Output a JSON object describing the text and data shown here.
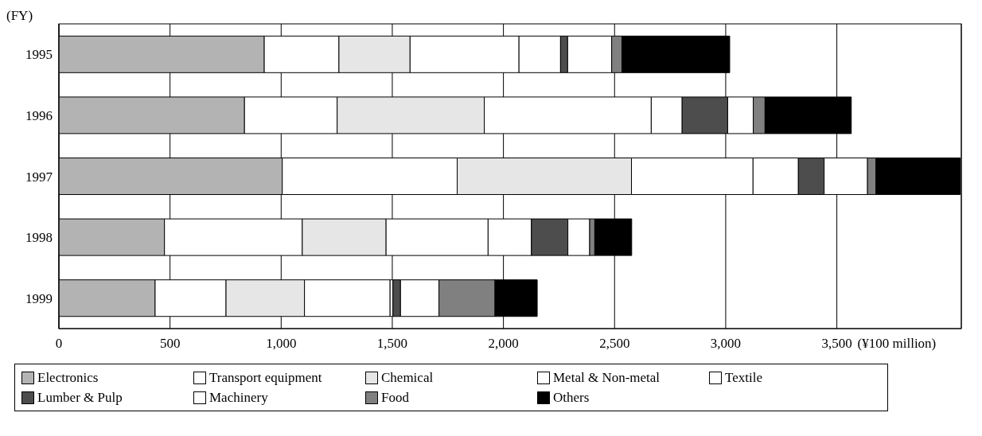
{
  "chart_data": {
    "type": "bar",
    "orientation": "horizontal",
    "stacked": true,
    "ylabel": "(FY)",
    "xlabel": "(¥100 million)",
    "categories": [
      "1995",
      "1996",
      "1997",
      "1998",
      "1999"
    ],
    "series": [
      {
        "name": "Electronics",
        "color": "#b3b3b3",
        "values": [
          924,
          835,
          1005,
          475,
          433
        ]
      },
      {
        "name": "Transport equipment",
        "color": "#ffffff",
        "values": [
          336,
          417,
          787,
          620,
          319
        ]
      },
      {
        "name": "Chemical",
        "color": "#e6e6e6",
        "values": [
          320,
          662,
          784,
          377,
          353
        ]
      },
      {
        "name": "Metal & Non-metal",
        "color": "#ffffff",
        "values": [
          490,
          751,
          547,
          459,
          385
        ]
      },
      {
        "name": "Textile",
        "color": "#ffffff",
        "values": [
          187,
          139,
          204,
          195,
          13
        ]
      },
      {
        "name": "Lumber & Pulp",
        "color": "#4d4d4d",
        "values": [
          32,
          205,
          116,
          164,
          34
        ]
      },
      {
        "name": "Machinery",
        "color": "#ffffff",
        "values": [
          198,
          115,
          195,
          98,
          173
        ]
      },
      {
        "name": "Food",
        "color": "#808080",
        "values": [
          46,
          53,
          38,
          23,
          252
        ]
      },
      {
        "name": "Others",
        "color": "#000000",
        "values": [
          485,
          388,
          379,
          166,
          190
        ]
      }
    ],
    "xlim": [
      0,
      4060
    ],
    "xticks": [
      0,
      500,
      {
        "value": 1000,
        "label": "1,000"
      },
      {
        "value": 1500,
        "label": "1,500"
      },
      {
        "value": 2000,
        "label": "2,000"
      },
      {
        "value": 2500,
        "label": "2,500"
      },
      {
        "value": 3000,
        "label": "3,000"
      },
      {
        "value": 3500,
        "label": "3,500"
      }
    ],
    "grid": "x",
    "legend": "bottom"
  }
}
